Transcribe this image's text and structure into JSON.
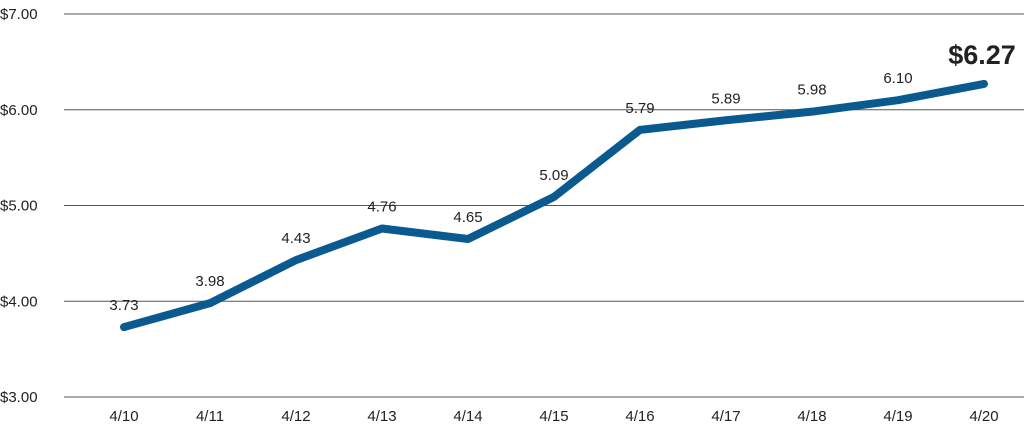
{
  "chart_data": {
    "type": "line",
    "title": "",
    "xlabel": "",
    "ylabel": "",
    "categories": [
      "4/10",
      "4/11",
      "4/12",
      "4/13",
      "4/14",
      "4/15",
      "4/16",
      "4/17",
      "4/18",
      "4/19",
      "4/20"
    ],
    "series": [
      {
        "values": [
          3.73,
          3.98,
          4.43,
          4.76,
          4.65,
          5.09,
          5.79,
          5.89,
          5.98,
          6.1,
          6.27
        ],
        "labels": [
          "3.73",
          "3.98",
          "4.43",
          "4.76",
          "4.65",
          "5.09",
          "5.79",
          "5.89",
          "5.98",
          "6.10",
          "$6.27"
        ]
      }
    ],
    "ylim": [
      3,
      7
    ],
    "yticks": [
      3,
      4,
      5,
      6,
      7
    ],
    "ytick_labels": [
      "$3.00",
      "$4.00",
      "$5.00",
      "$6.00",
      "$7.00"
    ],
    "grid": "horizontal",
    "legend": "none",
    "colors": {
      "line": "#0a5a8f",
      "grid": "#555555",
      "text": "#222222"
    }
  }
}
